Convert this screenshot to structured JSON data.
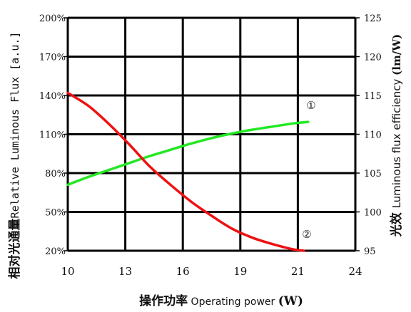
{
  "chart_data": {
    "type": "line",
    "title": "",
    "xlabel": {
      "cn": "操作功率",
      "en": " Operating power ",
      "unit": "(W)"
    },
    "ylabel_left": {
      "cn": "相对光通量",
      "en": "Relative Luminous Flux [a.u.]"
    },
    "ylabel_right": {
      "cn": "光效 ",
      "en": "Luminous flux efficiency ",
      "unit": "(lm/W)"
    },
    "xlim": [
      10,
      24
    ],
    "xticks": [
      10,
      13,
      16,
      19,
      21,
      24
    ],
    "ylim_left": [
      20,
      200
    ],
    "yticks_left": [
      "200%",
      "170%",
      "140%",
      "110%",
      "80%",
      "50%",
      "20%"
    ],
    "ylim_right": [
      95,
      125
    ],
    "yticks_right": [
      "125",
      "120",
      "115",
      "110",
      "105",
      "100",
      "95"
    ],
    "grid": true,
    "series": [
      {
        "marker": "①",
        "axis": "right",
        "color": "#22e822",
        "x": [
          10,
          11,
          12,
          13,
          14,
          15,
          16,
          17,
          18,
          19,
          20,
          21,
          21.7
        ],
        "y": [
          103.5,
          104.5,
          105.4,
          106.3,
          107.2,
          108.0,
          108.8,
          109.5,
          110.1,
          110.6,
          111.0,
          111.4,
          111.6
        ]
      },
      {
        "marker": "②",
        "axis": "left",
        "color": "#ee1111",
        "x": [
          10,
          11,
          12,
          13,
          14,
          15,
          16,
          17,
          18,
          19,
          20,
          21,
          21.5
        ],
        "y": [
          142,
          132,
          118,
          102,
          85,
          71,
          58,
          47,
          37,
          30,
          25,
          21,
          20
        ]
      }
    ]
  }
}
